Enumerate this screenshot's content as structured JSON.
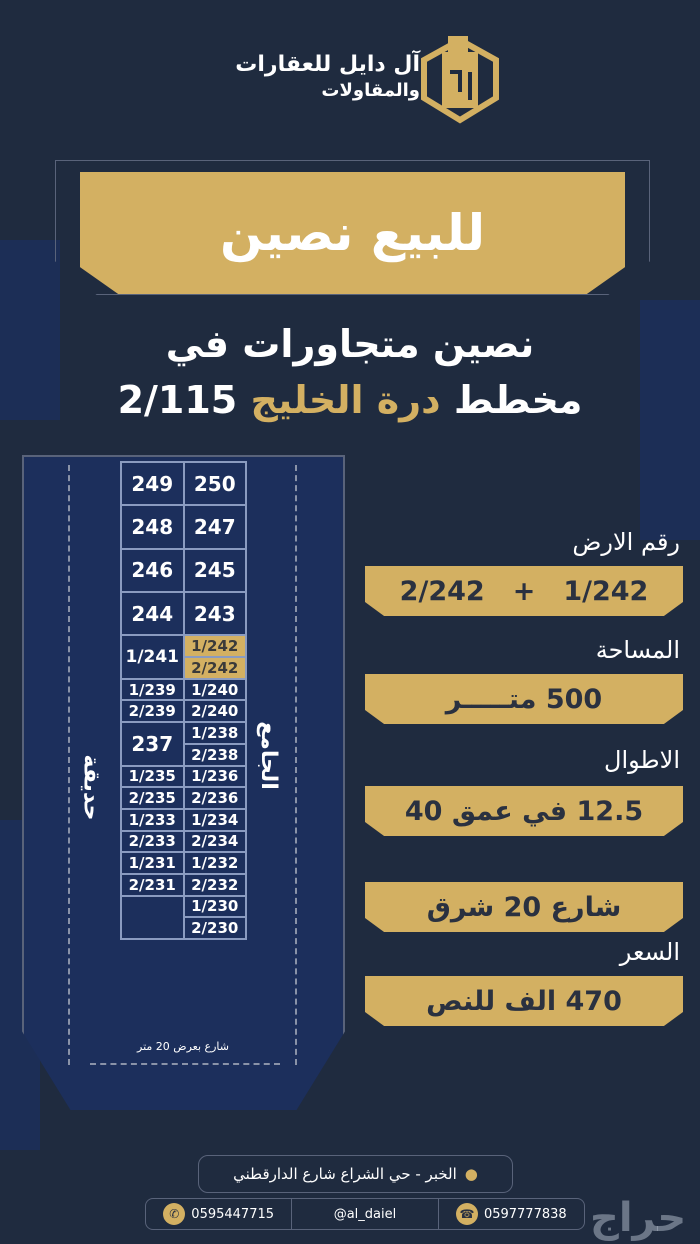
{
  "brand": {
    "name_line1": "آل دايل للعقارات",
    "name_line2": "والمقاولات",
    "accent": "#d3b062",
    "background": "#1f2b3f"
  },
  "banner": {
    "title": "للبيع نصين"
  },
  "headline": {
    "line1": "نصين متجاورات في",
    "line2_prefix": "مخطط",
    "line2_highlight": "درة الخليج",
    "line2_suffix": "2/115"
  },
  "map": {
    "left_label": "حديقة",
    "right_label": "الجامع",
    "bottom_street": "شارع بعرض 20 متر",
    "left_column": [
      "249",
      "248",
      "246",
      "244",
      "1/241",
      "1/239",
      "2/239",
      "237",
      "1/235",
      "2/235",
      "1/233",
      "2/233",
      "1/231",
      "2/231",
      ""
    ],
    "right_column": [
      "250",
      "247",
      "245",
      "243",
      "1/242",
      "2/242",
      "1/240",
      "2/240",
      "1/238",
      "2/238",
      "1/236",
      "2/236",
      "1/234",
      "2/234",
      "1/232",
      "2/232",
      "1/230",
      "2/230"
    ],
    "highlighted": [
      "1/242",
      "2/242"
    ]
  },
  "details": {
    "plot_label": "رقم الارض",
    "plot_a": "1/242",
    "plot_plus": "+",
    "plot_b": "2/242",
    "area_label": "المساحة",
    "area_value": "500 متـــــر",
    "dims_label": "الاطوال",
    "dims_value": "12.5 في عمق 40",
    "street_value": "شارع 20 شرق",
    "price_label": "السعر",
    "price_value": "470 الف للنص"
  },
  "footer": {
    "address": "الخبر - حي الشراع شارع الدارقطني",
    "whatsapp": "0595447715",
    "social": "@al_daiel",
    "phone": "0597777838",
    "watermark": "حراج"
  }
}
